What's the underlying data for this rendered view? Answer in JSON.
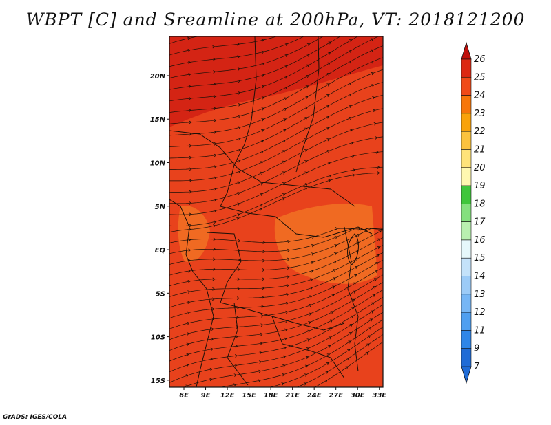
{
  "title": "WBPT [C] and Sreamline at 200hPa, VT: 2018121200",
  "footer": "GrADS: IGES/COLA",
  "map": {
    "lon_range": [
      4,
      33.5
    ],
    "lat_range": [
      -15.8,
      24.5
    ],
    "lon_ticks": [
      "6E",
      "9E",
      "12E",
      "15E",
      "18E",
      "21E",
      "24E",
      "27E",
      "30E",
      "33E"
    ],
    "lat_ticks": [
      "20N",
      "15N",
      "10N",
      "5N",
      "EQ",
      "5S",
      "10S",
      "15S"
    ],
    "base_fill_color": "#e8421c",
    "north_band_color": "#d42414",
    "warm_patch_color": "#f06a22",
    "line_color": "#1a1008"
  },
  "colorbar": {
    "levels": [
      "7",
      "9",
      "11",
      "12",
      "13",
      "14",
      "15",
      "16",
      "17",
      "18",
      "19",
      "20",
      "21",
      "22",
      "23",
      "24",
      "25",
      "26"
    ],
    "colors": [
      "#1f6bd6",
      "#2f86e8",
      "#4f9ff0",
      "#76b6f5",
      "#9ccbf7",
      "#c4e2fa",
      "#e6f8fb",
      "#b9f0b0",
      "#84e07e",
      "#3fc63b",
      "#fff8b0",
      "#ffe37a",
      "#fbc23e",
      "#f9a20a",
      "#f7760a",
      "#f04a18",
      "#dc2812",
      "#c0100c"
    ]
  }
}
